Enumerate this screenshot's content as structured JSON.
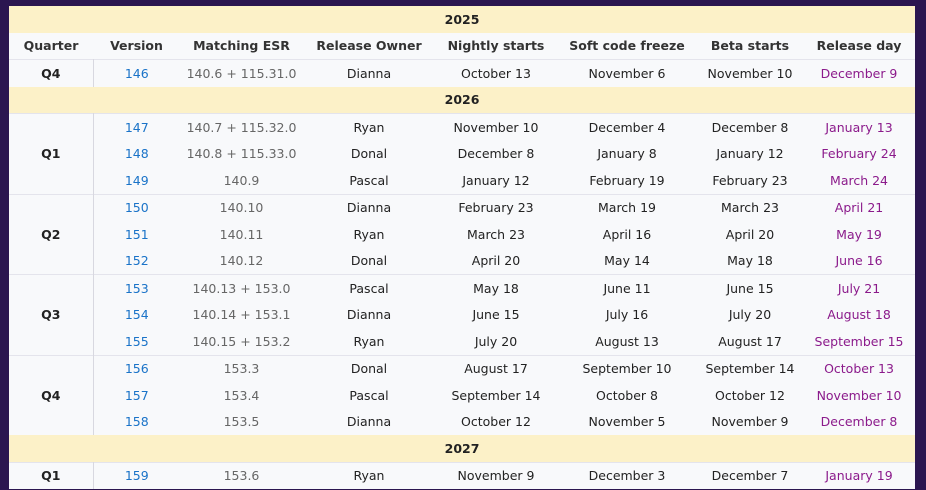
{
  "columns": [
    "Quarter",
    "Version",
    "Matching ESR",
    "Release Owner",
    "Nightly starts",
    "Soft code freeze",
    "Beta starts",
    "Release day"
  ],
  "sections": [
    {
      "year": "2025",
      "quarters": [
        {
          "quarter": "Q4",
          "rows": [
            [
              "146",
              "140.6 + 115.31.0",
              "Dianna",
              "October 13",
              "November 6",
              "November 10",
              "December 9"
            ]
          ]
        }
      ]
    },
    {
      "year": "2026",
      "quarters": [
        {
          "quarter": "Q1",
          "rows": [
            [
              "147",
              "140.7 + 115.32.0",
              "Ryan",
              "November 10",
              "December 4",
              "December 8",
              "January 13"
            ],
            [
              "148",
              "140.8 + 115.33.0",
              "Donal",
              "December 8",
              "January 8",
              "January 12",
              "February 24"
            ],
            [
              "149",
              "140.9",
              "Pascal",
              "January 12",
              "February 19",
              "February 23",
              "March 24"
            ]
          ]
        },
        {
          "quarter": "Q2",
          "rows": [
            [
              "150",
              "140.10",
              "Dianna",
              "February 23",
              "March 19",
              "March 23",
              "April 21"
            ],
            [
              "151",
              "140.11",
              "Ryan",
              "March 23",
              "April 16",
              "April 20",
              "May 19"
            ],
            [
              "152",
              "140.12",
              "Donal",
              "April 20",
              "May 14",
              "May 18",
              "June 16"
            ]
          ]
        },
        {
          "quarter": "Q3",
          "rows": [
            [
              "153",
              "140.13 + 153.0",
              "Pascal",
              "May 18",
              "June 11",
              "June 15",
              "July 21"
            ],
            [
              "154",
              "140.14 + 153.1",
              "Dianna",
              "June 15",
              "July 16",
              "July 20",
              "August 18"
            ],
            [
              "155",
              "140.15 + 153.2",
              "Ryan",
              "July 20",
              "August 13",
              "August 17",
              "September 15"
            ]
          ]
        },
        {
          "quarter": "Q4",
          "rows": [
            [
              "156",
              "153.3",
              "Donal",
              "August 17",
              "September 10",
              "September 14",
              "October 13"
            ],
            [
              "157",
              "153.4",
              "Pascal",
              "September 14",
              "October 8",
              "October 12",
              "November 10"
            ],
            [
              "158",
              "153.5",
              "Dianna",
              "October 12",
              "November 5",
              "November 9",
              "December 8"
            ]
          ]
        }
      ]
    },
    {
      "year": "2027",
      "quarters": [
        {
          "quarter": "Q1",
          "rows": [
            [
              "159",
              "153.6",
              "Ryan",
              "November 9",
              "December 3",
              "December 7",
              "January 19"
            ]
          ]
        }
      ]
    }
  ]
}
